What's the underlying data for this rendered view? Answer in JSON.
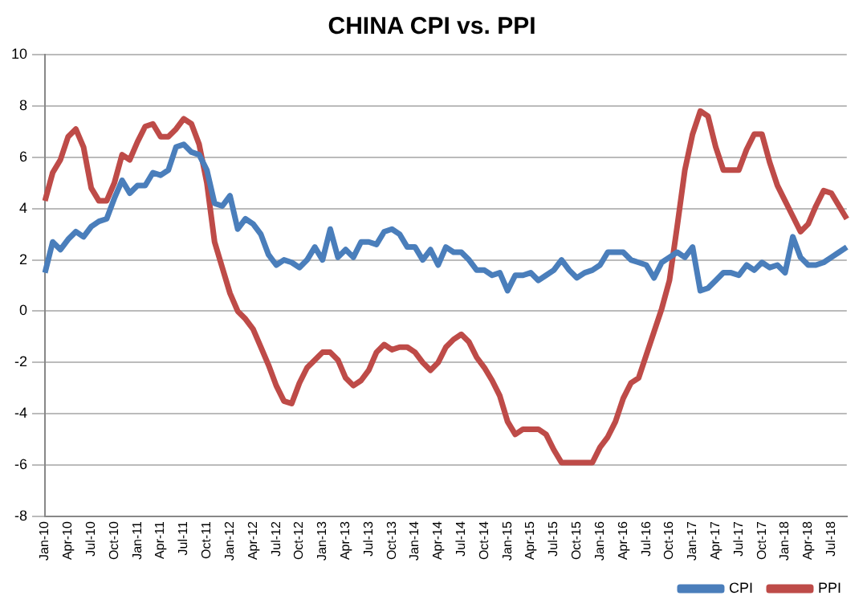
{
  "chart_data": {
    "type": "line",
    "title": "CHINA CPI vs. PPI",
    "categories": [
      "Jan-10",
      null,
      null,
      "Apr-10",
      null,
      null,
      "Jul-10",
      null,
      null,
      "Oct-10",
      null,
      null,
      "Jan-11",
      null,
      null,
      "Apr-11",
      null,
      null,
      "Jul-11",
      null,
      null,
      "Oct-11",
      null,
      null,
      "Jan-12",
      null,
      null,
      "Apr-12",
      null,
      null,
      "Jul-12",
      null,
      null,
      "Oct-12",
      null,
      null,
      "Jan-13",
      null,
      null,
      "Apr-13",
      null,
      null,
      "Jul-13",
      null,
      null,
      "Oct-13",
      null,
      null,
      "Jan-14",
      null,
      null,
      "Apr-14",
      null,
      null,
      "Jul-14",
      null,
      null,
      "Oct-14",
      null,
      null,
      "Jan-15",
      null,
      null,
      "Apr-15",
      null,
      null,
      "Jul-15",
      null,
      null,
      "Oct-15",
      null,
      null,
      "Jan-16",
      null,
      null,
      "Apr-16",
      null,
      null,
      "Jul-16",
      null,
      null,
      "Oct-16",
      null,
      null,
      "Jan-17",
      null,
      null,
      "Apr-17",
      null,
      null,
      "Jul-17",
      null,
      null,
      "Oct-17",
      null,
      null,
      "Jan-18",
      null,
      null,
      "Apr-18",
      null,
      null,
      "Jul-18",
      null,
      null
    ],
    "series": [
      {
        "name": "CPI",
        "color": "#4a7ebb",
        "values": [
          1.5,
          2.7,
          2.4,
          2.8,
          3.1,
          2.9,
          3.3,
          3.5,
          3.6,
          4.4,
          5.1,
          4.6,
          4.9,
          4.9,
          5.4,
          5.3,
          5.5,
          6.4,
          6.5,
          6.2,
          6.1,
          5.5,
          4.2,
          4.1,
          4.5,
          3.2,
          3.6,
          3.4,
          3.0,
          2.2,
          1.8,
          2.0,
          1.9,
          1.7,
          2.0,
          2.5,
          2.0,
          3.2,
          2.1,
          2.4,
          2.1,
          2.7,
          2.7,
          2.6,
          3.1,
          3.2,
          3.0,
          2.5,
          2.5,
          2.0,
          2.4,
          1.8,
          2.5,
          2.3,
          2.3,
          2.0,
          1.6,
          1.6,
          1.4,
          1.5,
          0.8,
          1.4,
          1.4,
          1.5,
          1.2,
          1.4,
          1.6,
          2.0,
          1.6,
          1.3,
          1.5,
          1.6,
          1.8,
          2.3,
          2.3,
          2.3,
          2.0,
          1.9,
          1.8,
          1.3,
          1.9,
          2.1,
          2.3,
          2.1,
          2.5,
          0.8,
          0.9,
          1.2,
          1.5,
          1.5,
          1.4,
          1.8,
          1.6,
          1.9,
          1.7,
          1.8,
          1.5,
          2.9,
          2.1,
          1.8,
          1.8,
          1.9,
          2.1,
          2.3,
          2.5
        ]
      },
      {
        "name": "PPI",
        "color": "#be4b48",
        "values": [
          4.3,
          5.4,
          5.9,
          6.8,
          7.1,
          6.4,
          4.8,
          4.3,
          4.3,
          5.0,
          6.1,
          5.9,
          6.6,
          7.2,
          7.3,
          6.8,
          6.8,
          7.1,
          7.5,
          7.3,
          6.5,
          5.0,
          2.7,
          1.7,
          0.7,
          0.0,
          -0.3,
          -0.7,
          -1.4,
          -2.1,
          -2.9,
          -3.5,
          -3.6,
          -2.8,
          -2.2,
          -1.9,
          -1.6,
          -1.6,
          -1.9,
          -2.6,
          -2.9,
          -2.7,
          -2.3,
          -1.6,
          -1.3,
          -1.5,
          -1.4,
          -1.4,
          -1.6,
          -2.0,
          -2.3,
          -2.0,
          -1.4,
          -1.1,
          -0.9,
          -1.2,
          -1.8,
          -2.2,
          -2.7,
          -3.3,
          -4.3,
          -4.8,
          -4.6,
          -4.6,
          -4.6,
          -4.8,
          -5.4,
          -5.9,
          -5.9,
          -5.9,
          -5.9,
          -5.9,
          -5.3,
          -4.9,
          -4.3,
          -3.4,
          -2.8,
          -2.6,
          -1.7,
          -0.8,
          0.1,
          1.2,
          3.3,
          5.5,
          6.9,
          7.8,
          7.6,
          6.4,
          5.5,
          5.5,
          5.5,
          6.3,
          6.9,
          6.9,
          5.8,
          4.9,
          4.3,
          3.7,
          3.1,
          3.4,
          4.1,
          4.7,
          4.6,
          4.1,
          3.6
        ]
      }
    ],
    "ylim": [
      -8,
      10
    ],
    "yticks": [
      -8,
      -6,
      -4,
      -2,
      0,
      2,
      4,
      6,
      8,
      10
    ],
    "grid": "y",
    "legend": "bottom",
    "marker": "none",
    "line_style": "solid"
  }
}
